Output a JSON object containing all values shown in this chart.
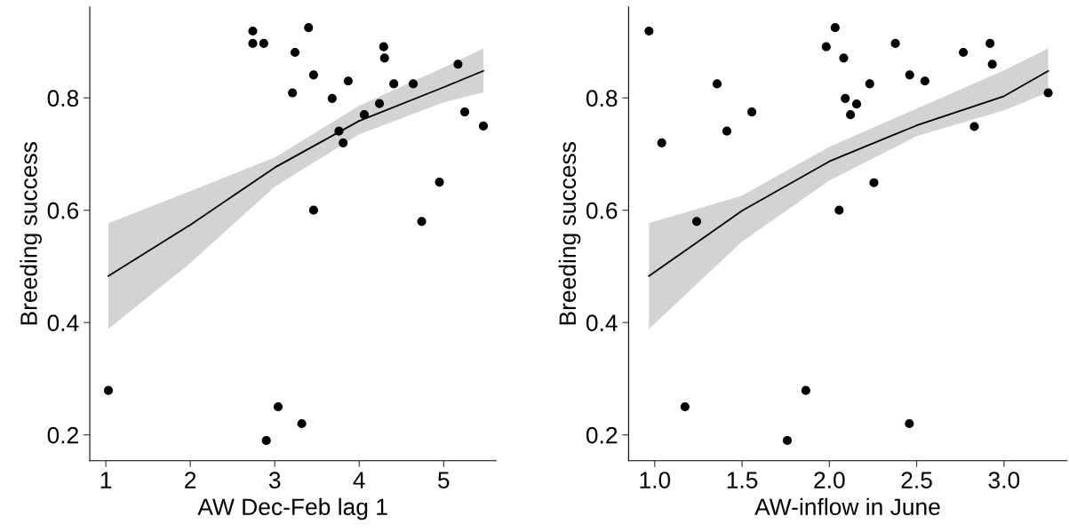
{
  "chart_data": [
    {
      "type": "scatter",
      "xlabel": "AW Dec-Feb lag 1",
      "ylabel": "Breeding success",
      "xlim": [
        0.81,
        5.62
      ],
      "ylim": [
        0.154,
        0.962
      ],
      "xticks": [
        1,
        2,
        3,
        4,
        5
      ],
      "yticks": [
        0.2,
        0.4,
        0.6,
        0.8
      ],
      "grid": false,
      "legend": false,
      "series": [
        {
          "marker": "circle",
          "color": "#000000",
          "x": [
            2.74,
            2.74,
            2.87,
            3.4,
            3.24,
            4.29,
            4.3,
            3.46,
            3.87,
            3.21,
            3.68,
            4.41,
            4.64,
            5.17,
            4.24,
            4.06,
            5.25,
            3.76,
            3.81,
            4.95,
            3.46,
            4.74,
            1.03,
            3.04,
            3.32,
            2.9,
            5.47
          ],
          "values": [
            0.919,
            0.897,
            0.897,
            0.925,
            0.881,
            0.891,
            0.871,
            0.841,
            0.83,
            0.809,
            0.799,
            0.825,
            0.825,
            0.86,
            0.79,
            0.77,
            0.775,
            0.741,
            0.72,
            0.65,
            0.6,
            0.58,
            0.279,
            0.25,
            0.22,
            0.19,
            0.75
          ]
        },
        {
          "type": "line",
          "color": "#000000",
          "line_style": "solid",
          "x": [
            1.03,
            2.0,
            3.0,
            4.0,
            5.0,
            5.47
          ],
          "values": [
            0.483,
            0.574,
            0.676,
            0.759,
            0.819,
            0.848
          ],
          "lower": [
            0.389,
            0.506,
            0.642,
            0.735,
            0.792,
            0.81
          ],
          "upper": [
            0.577,
            0.634,
            0.694,
            0.786,
            0.854,
            0.888
          ]
        }
      ]
    },
    {
      "type": "scatter",
      "xlabel": "AW-inflow in June",
      "ylabel": "Breeding success",
      "xlim": [
        0.85,
        3.36
      ],
      "ylim": [
        0.154,
        0.962
      ],
      "xticks": [
        {
          "value": 1,
          "label": "1.0"
        },
        1.5,
        {
          "value": 2,
          "label": "2.0"
        },
        2.5,
        {
          "value": 3,
          "label": "3.0"
        }
      ],
      "yticks": [
        0.2,
        0.4,
        0.6,
        0.8
      ],
      "grid": false,
      "legend": false,
      "series": [
        {
          "marker": "circle",
          "color": "#000000",
          "x": [
            0.967,
            1.04,
            1.357,
            1.413,
            1.556,
            1.24,
            1.173,
            1.759,
            1.865,
            1.982,
            2.033,
            2.082,
            2.091,
            2.156,
            2.121,
            2.231,
            2.255,
            2.056,
            2.378,
            2.46,
            2.547,
            2.458,
            2.767,
            2.83,
            2.92,
            2.933,
            3.253
          ],
          "values": [
            0.919,
            0.72,
            0.825,
            0.741,
            0.775,
            0.58,
            0.25,
            0.19,
            0.279,
            0.891,
            0.925,
            0.871,
            0.799,
            0.789,
            0.77,
            0.825,
            0.649,
            0.6,
            0.897,
            0.841,
            0.83,
            0.22,
            0.881,
            0.749,
            0.897,
            0.86,
            0.809
          ]
        },
        {
          "type": "line",
          "color": "#000000",
          "line_style": "solid",
          "x": [
            0.967,
            1.5,
            2.0,
            2.5,
            3.0,
            3.253
          ],
          "values": [
            0.483,
            0.599,
            0.687,
            0.751,
            0.803,
            0.848
          ],
          "lower": [
            0.389,
            0.544,
            0.653,
            0.732,
            0.778,
            0.81
          ],
          "upper": [
            0.577,
            0.626,
            0.713,
            0.781,
            0.849,
            0.888
          ]
        }
      ]
    }
  ]
}
